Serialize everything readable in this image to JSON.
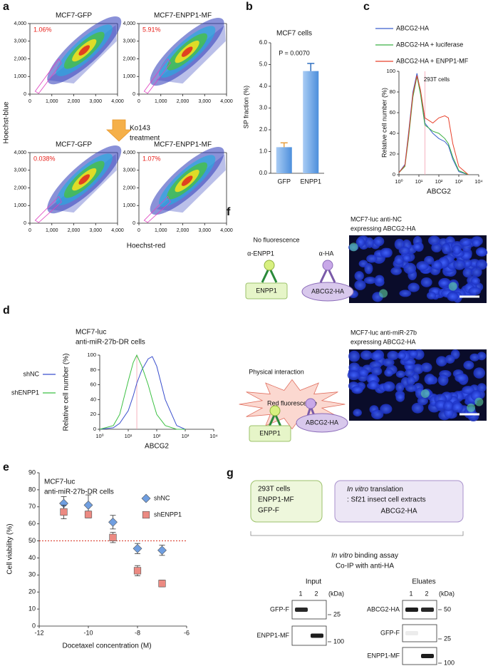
{
  "panel_labels": [
    "a",
    "b",
    "c",
    "d",
    "e",
    "f",
    "g"
  ],
  "panel_a": {
    "treatment": [
      "Ko143",
      "treatment"
    ],
    "xlabel": "Hoechst-red",
    "ylabel": "Hoechst-blue"
  },
  "chart_data": [
    {
      "type": "density",
      "title": "MCF7-GFP",
      "annotation": "1.06%",
      "xlim": [
        0,
        4000
      ],
      "ylim": [
        0,
        4000
      ],
      "xticks": [
        0,
        {
          "value": 1000,
          "label": "1,000"
        },
        {
          "value": 2000,
          "label": "2,000"
        },
        {
          "value": 3000,
          "label": "3,000"
        },
        {
          "value": 4000,
          "label": "4,000"
        }
      ],
      "yticks": [
        0,
        {
          "value": 1000,
          "label": "1,000"
        },
        {
          "value": 2000,
          "label": "2,000"
        },
        {
          "value": 3000,
          "label": "3,000"
        },
        {
          "value": 4000,
          "label": "4,000"
        }
      ]
    },
    {
      "type": "density",
      "title": "MCF7-ENPP1-MF",
      "annotation": "5.91%",
      "xlim": [
        0,
        4000
      ],
      "ylim": [
        0,
        4000
      ],
      "xticks": [
        0,
        {
          "value": 1000,
          "label": "1,000"
        },
        {
          "value": 2000,
          "label": "2,000"
        },
        {
          "value": 3000,
          "label": "3,000"
        },
        {
          "value": 4000,
          "label": "4,000"
        }
      ],
      "yticks": [
        0,
        {
          "value": 1000,
          "label": "1,000"
        },
        {
          "value": 2000,
          "label": "2,000"
        },
        {
          "value": 3000,
          "label": "3,000"
        },
        {
          "value": 4000,
          "label": "4,000"
        }
      ]
    },
    {
      "type": "density",
      "title": "MCF7-GFP",
      "annotation": "0.038%",
      "xlim": [
        0,
        4000
      ],
      "ylim": [
        0,
        4000
      ],
      "xticks": [
        0,
        {
          "value": 1000,
          "label": "1,000"
        },
        {
          "value": 2000,
          "label": "2,000"
        },
        {
          "value": 3000,
          "label": "3,000"
        },
        {
          "value": 4000,
          "label": "4,000"
        }
      ],
      "yticks": [
        0,
        {
          "value": 1000,
          "label": "1,000"
        },
        {
          "value": 2000,
          "label": "2,000"
        },
        {
          "value": 3000,
          "label": "3,000"
        },
        {
          "value": 4000,
          "label": "4,000"
        }
      ]
    },
    {
      "type": "density",
      "title": "MCF7-ENPP1-MF",
      "annotation": "1.07%",
      "xlim": [
        0,
        4000
      ],
      "ylim": [
        0,
        4000
      ],
      "xticks": [
        0,
        {
          "value": 1000,
          "label": "1,000"
        },
        {
          "value": 2000,
          "label": "2,000"
        },
        {
          "value": 3000,
          "label": "3,000"
        },
        {
          "value": 4000,
          "label": "4,000"
        }
      ],
      "yticks": [
        0,
        {
          "value": 1000,
          "label": "1,000"
        },
        {
          "value": 2000,
          "label": "2,000"
        },
        {
          "value": 3000,
          "label": "3,000"
        },
        {
          "value": 4000,
          "label": "4,000"
        }
      ]
    },
    {
      "type": "bar",
      "title": "MCF7 cells",
      "annotation": "P = 0.0070",
      "ylabel": "SP fraction (%)",
      "categories": [
        "GFP",
        "ENPP1"
      ],
      "values": [
        1.2,
        4.7
      ],
      "errors": [
        0.2,
        0.35
      ],
      "color": "#6fa8e8",
      "ylim": [
        0,
        6
      ],
      "yticks": [
        {
          "value": 0,
          "label": "0.0"
        },
        {
          "value": 1,
          "label": "1.0"
        },
        {
          "value": 2,
          "label": "2.0"
        },
        {
          "value": 3,
          "label": "3.0"
        },
        {
          "value": 4,
          "label": "4.0"
        },
        {
          "value": 5,
          "label": "5.0"
        },
        {
          "value": 6,
          "label": "6.0"
        }
      ]
    },
    {
      "type": "line",
      "title": "293T cells",
      "xlabel": "ABCG2",
      "ylabel": "Relative cell number (%)",
      "xlog": true,
      "vline": 20,
      "x": [
        1,
        2,
        3,
        5,
        8,
        12,
        20,
        50,
        100,
        200,
        300,
        500,
        1000,
        3000
      ],
      "series": [
        {
          "name": "ABCG2-HA",
          "color": "#3a5fcd",
          "values": [
            2,
            10,
            40,
            80,
            98,
            80,
            50,
            40,
            35,
            32,
            28,
            15,
            3,
            0
          ]
        },
        {
          "name": "ABCG2-HA + luciferase",
          "color": "#3cb043",
          "values": [
            2,
            8,
            35,
            75,
            95,
            78,
            48,
            42,
            40,
            35,
            30,
            17,
            4,
            0
          ]
        },
        {
          "name": "ABCG2-HA + ENPP1-MF",
          "color": "#e8402a",
          "values": [
            2,
            9,
            38,
            78,
            96,
            82,
            55,
            50,
            55,
            57,
            55,
            30,
            8,
            0
          ]
        }
      ],
      "xlim": [
        1,
        10000
      ],
      "xticks": [
        {
          "value": 1,
          "label": "10⁰"
        },
        {
          "value": 10,
          "label": "10¹"
        },
        {
          "value": 100,
          "label": "10²"
        },
        {
          "value": 1000,
          "label": "10³"
        },
        {
          "value": 10000,
          "label": "10⁴"
        }
      ],
      "ylim": [
        0,
        100
      ],
      "yticks": [
        0,
        20,
        40,
        60,
        80,
        100
      ]
    },
    {
      "type": "line",
      "title": [
        "MCF7-luc",
        "anti-miR-27b-DR cells"
      ],
      "xlabel": "ABCG2",
      "ylabel": "Relative cell number (%)",
      "xlog": true,
      "vline": 20,
      "x": [
        1,
        3,
        5,
        10,
        15,
        20,
        30,
        50,
        70,
        100,
        200,
        500,
        1000
      ],
      "series": [
        {
          "name": "shNC",
          "color": "#3a4fcd",
          "values": [
            0,
            2,
            8,
            25,
            45,
            62,
            80,
            95,
            98,
            85,
            40,
            5,
            0
          ]
        },
        {
          "name": "shENPP1",
          "color": "#3cc043",
          "values": [
            0,
            5,
            20,
            65,
            90,
            100,
            85,
            60,
            40,
            20,
            5,
            0,
            0
          ]
        }
      ],
      "xlim": [
        1,
        10000
      ],
      "xticks": [
        {
          "value": 1,
          "label": "10⁰"
        },
        {
          "value": 10,
          "label": "10¹"
        },
        {
          "value": 100,
          "label": "10²"
        },
        {
          "value": 1000,
          "label": "10³"
        },
        {
          "value": 10000,
          "label": "10⁴"
        }
      ],
      "ylim": [
        0,
        100
      ],
      "yticks": [
        0,
        20,
        40,
        60,
        80,
        100
      ]
    },
    {
      "type": "scatter",
      "title": [
        "MCF7-luc",
        "anti-miR-27b-DR cells"
      ],
      "xlabel": "Docetaxel concentration (M)",
      "ylabel": "Cell viability (%)",
      "refline": 50,
      "x": [
        -11,
        -10,
        -9,
        -8,
        -7
      ],
      "series": [
        {
          "name": "shNC",
          "color": "#6f9ee0",
          "marker": "diamond",
          "values": [
            72,
            71,
            61,
            45.5,
            44.5
          ],
          "errors": [
            4,
            6,
            4,
            3,
            3
          ]
        },
        {
          "name": "shENPP1",
          "color": "#ec8a82",
          "marker": "square",
          "values": [
            67,
            65.5,
            52,
            32.5,
            25
          ],
          "errors": [
            4,
            2,
            3,
            3,
            2
          ]
        }
      ],
      "xlim": [
        -12,
        -6
      ],
      "xticks": [
        -12,
        -10,
        -8,
        -6
      ],
      "ylim": [
        0,
        90
      ],
      "yticks": [
        0,
        10,
        20,
        30,
        40,
        50,
        60,
        70,
        80,
        90
      ]
    }
  ],
  "panel_f": {
    "top": {
      "header": "No fluorescence",
      "antibodies": [
        "α-ENPP1",
        "α-HA"
      ],
      "targets": [
        "ENPP1",
        "ABCG2-HA"
      ],
      "caption": [
        "MCF7-luc anti-NC",
        "expressing ABCG2-HA"
      ]
    },
    "bottom": {
      "header": "Physical interaction",
      "signal": "Red fluorescence",
      "targets": [
        "ENPP1",
        "ABCG2-HA"
      ],
      "caption": [
        "MCF7-luc anti-miR-27b",
        "expressing ABCG2-HA"
      ]
    }
  },
  "panel_g": {
    "box1": [
      "293T cells",
      "ENPP1-MF",
      "GFP-F"
    ],
    "box2": {
      "italic": "In vitro",
      "rest": " translation",
      "lines": [
        ": Sf21 insect cell extracts",
        "ABCG2-HA"
      ]
    },
    "assay": {
      "italic": "In vitro",
      "rest": " binding assay",
      "line2": "Co-IP with anti-HA"
    },
    "input": {
      "title": "Input",
      "lanes": [
        "1",
        "2"
      ],
      "unit": "(kDa)",
      "rows": [
        {
          "label": "GFP-F",
          "marker": 25
        },
        {
          "label": "ENPP1-MF",
          "marker": 100
        }
      ]
    },
    "eluates": {
      "title": "Eluates",
      "lanes": [
        "1",
        "2"
      ],
      "unit": "(kDa)",
      "rows": [
        {
          "label": "ABCG2-HA",
          "marker": 50
        },
        {
          "label": "GFP-F",
          "marker": 25
        },
        {
          "label": "ENPP1-MF",
          "marker": 100
        }
      ]
    }
  }
}
